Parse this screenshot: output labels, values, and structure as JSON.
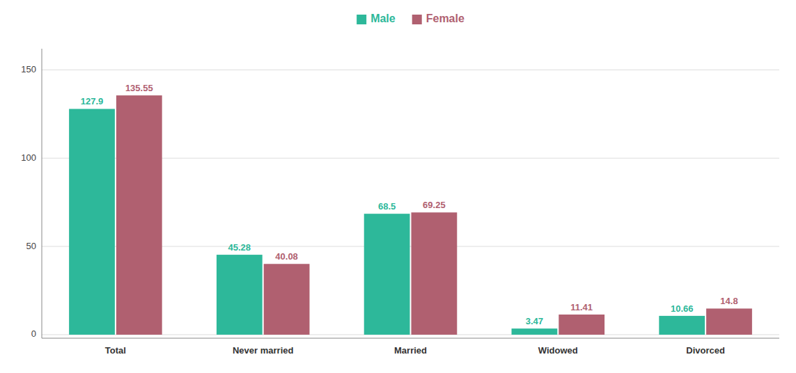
{
  "chart_data": {
    "type": "bar",
    "categories": [
      "Total",
      "Never married",
      "Married",
      "Widowed",
      "Divorced"
    ],
    "series": [
      {
        "name": "Male",
        "color": "#2db89a",
        "values": [
          127.9,
          45.28,
          68.5,
          3.47,
          10.66
        ]
      },
      {
        "name": "Female",
        "color": "#b06070",
        "values": [
          135.55,
          40.08,
          69.25,
          11.41,
          14.8
        ]
      }
    ],
    "ylim": [
      -2,
      162
    ],
    "yticks": [
      0,
      50,
      100,
      150
    ],
    "grid": true,
    "legend": "top",
    "data_labels": true
  }
}
